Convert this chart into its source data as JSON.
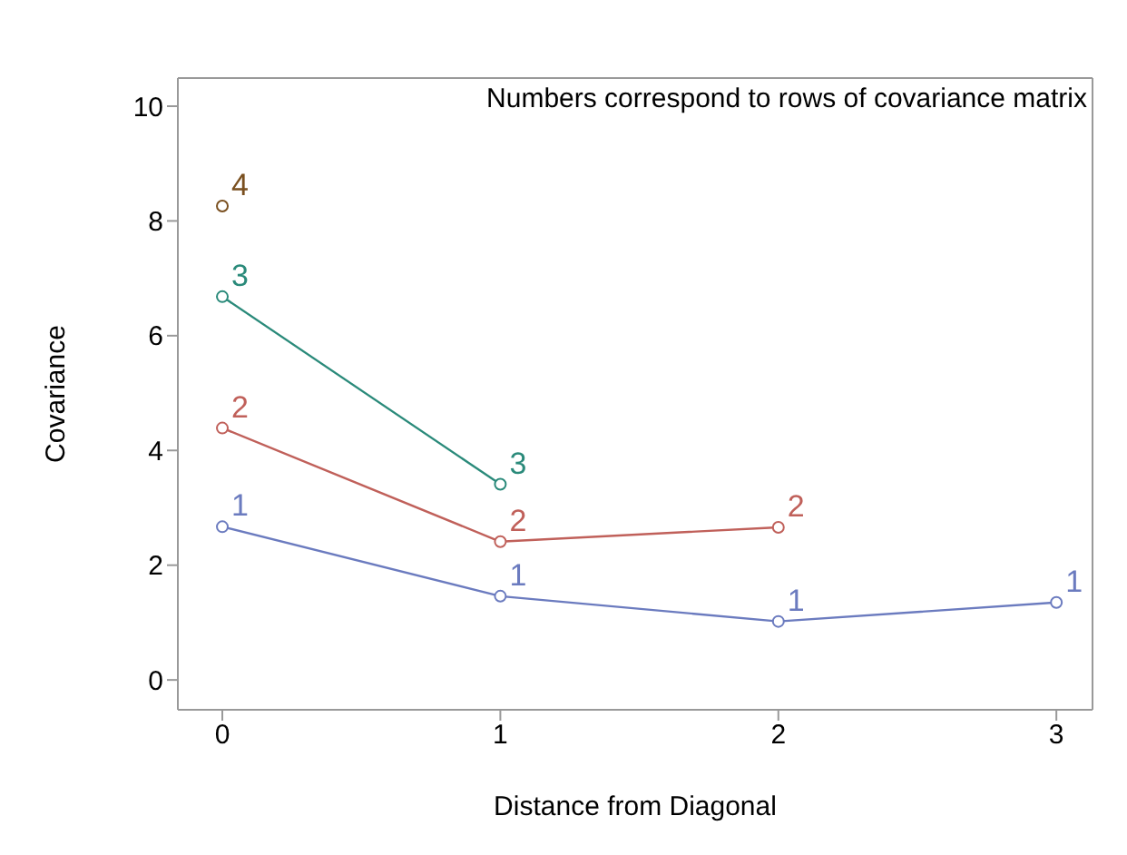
{
  "chart_data": {
    "type": "line",
    "xlabel": "Distance from Diagonal",
    "ylabel": "Covariance",
    "annotations": [
      "Numbers correspond to rows of covariance matrix"
    ],
    "xlim": [
      -0.16,
      3.13
    ],
    "xticks": [
      0,
      1,
      2,
      3
    ],
    "ylim": [
      -0.52,
      10.49
    ],
    "yticks": [
      0,
      2,
      4,
      6,
      8,
      10
    ],
    "marker": "circle",
    "line_style": "solid",
    "series": [
      {
        "name": "1",
        "color": "#6b7bbf",
        "x": [
          0,
          1,
          2,
          3
        ],
        "values": [
          2.67,
          1.46,
          1.02,
          1.35
        ]
      },
      {
        "name": "2",
        "color": "#c0605a",
        "x": [
          0,
          1,
          2
        ],
        "values": [
          4.39,
          2.41,
          2.66
        ]
      },
      {
        "name": "3",
        "color": "#2a8a7a",
        "x": [
          0,
          1
        ],
        "values": [
          6.68,
          3.41
        ]
      },
      {
        "name": "4",
        "color": "#7a5020",
        "x": [
          0
        ],
        "values": [
          8.26
        ]
      }
    ]
  }
}
